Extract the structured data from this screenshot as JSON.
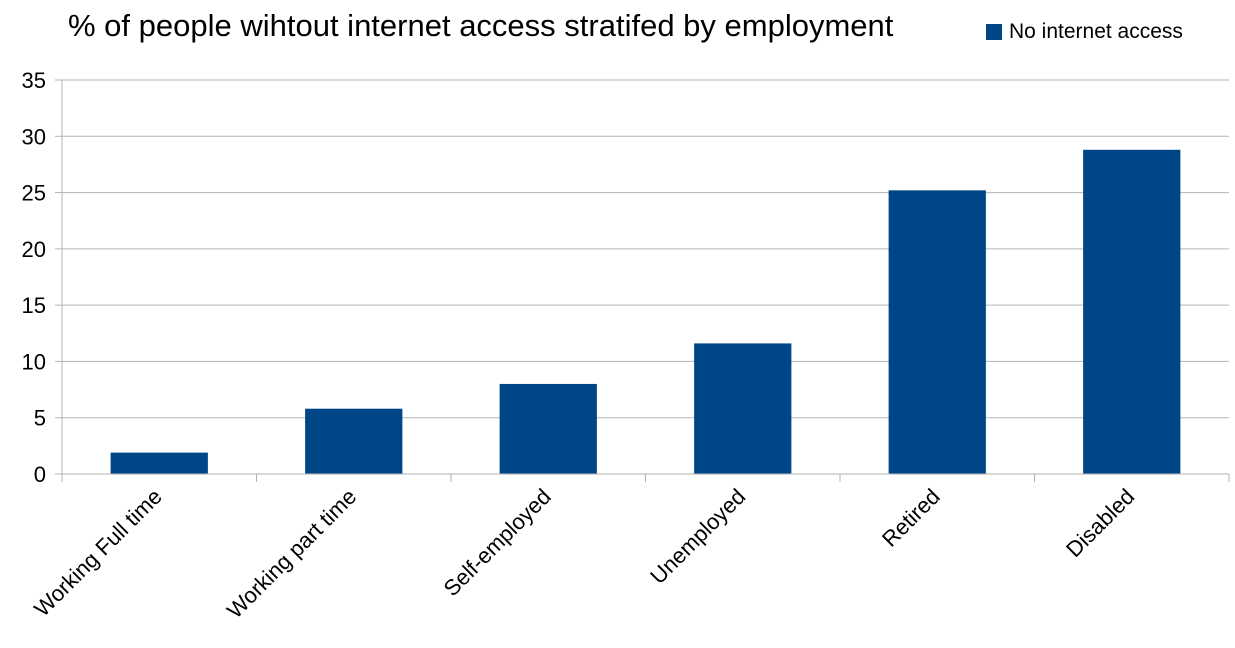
{
  "chart_data": {
    "type": "bar",
    "title": "% of people wihtout internet access stratifed by employment",
    "categories": [
      "Working Full time",
      "Working part time",
      "Self-employed",
      "Unemployed",
      "Retired",
      "Disabled"
    ],
    "series": [
      {
        "name": "No internet access",
        "values": [
          1.9,
          5.8,
          8.0,
          11.6,
          25.2,
          28.8
        ],
        "color": "#004586"
      }
    ],
    "xlabel": "",
    "ylabel": "",
    "ylim": [
      0,
      35
    ],
    "yticks": [
      "0",
      "5",
      "10",
      "15",
      "20",
      "25",
      "30",
      "35"
    ],
    "grid": "horizontal",
    "legend_position": "top-right"
  }
}
